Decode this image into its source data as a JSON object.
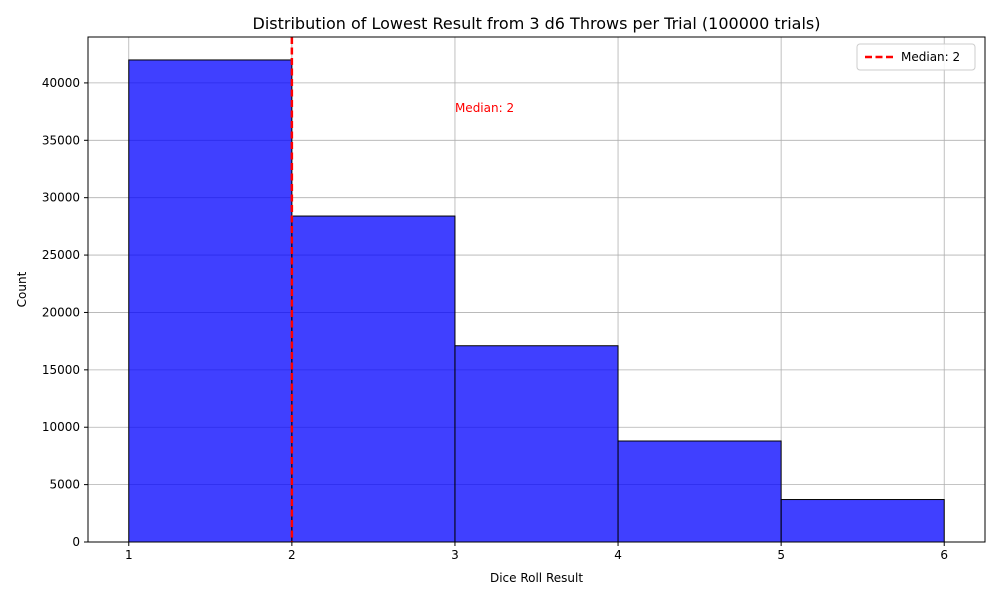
{
  "chart_data": {
    "type": "bar",
    "title": "Distribution of Lowest Result from 3 d6 Throws per Trial (100000 trials)",
    "xlabel": "Dice Roll Result",
    "ylabel": "Count",
    "bins": [
      {
        "start": 1,
        "end": 2,
        "value": 42000
      },
      {
        "start": 2,
        "end": 3,
        "value": 28400
      },
      {
        "start": 3,
        "end": 4,
        "value": 17100
      },
      {
        "start": 4,
        "end": 5,
        "value": 8800
      },
      {
        "start": 5,
        "end": 6,
        "value": 3700
      }
    ],
    "xlim": [
      0.75,
      6.25
    ],
    "ylim": [
      0,
      44000
    ],
    "xticks": [
      1,
      2,
      3,
      4,
      5,
      6
    ],
    "yticks": [
      0,
      5000,
      10000,
      15000,
      20000,
      25000,
      30000,
      35000,
      40000
    ],
    "median": {
      "x": 2,
      "label": "Median: 2",
      "color": "#ff0000"
    },
    "annotation": {
      "text": "Median: 2",
      "x": 3,
      "y": 37800,
      "color": "#ff0000"
    },
    "legend": {
      "position": "top-right",
      "entries": [
        {
          "label": "Median: 2",
          "style": "dashed",
          "color": "#ff0000"
        }
      ]
    },
    "grid": true,
    "bar_color": "#0000ff",
    "bar_edge_color": "#000000"
  }
}
